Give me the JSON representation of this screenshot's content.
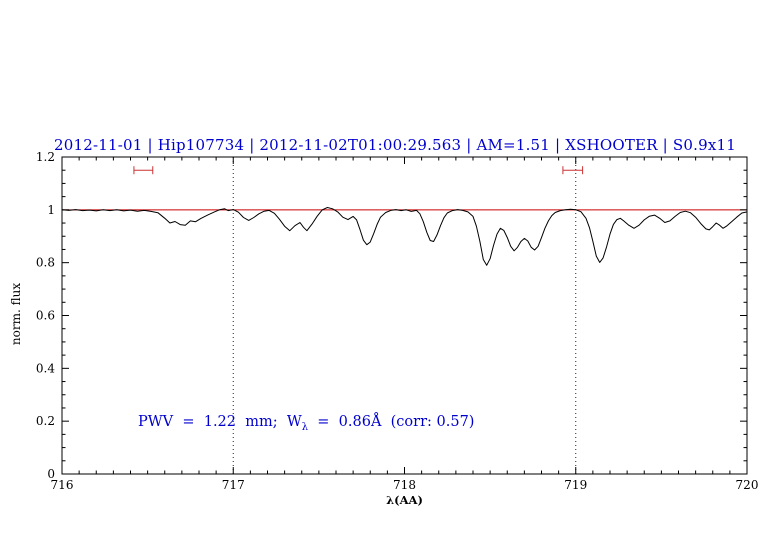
{
  "title": {
    "text": "2012-11-01 | Hip107734 | 2012-11-02T01:00:29.563 | AM=1.51 | XSHOOTER | S0.9x11",
    "color": "#0000cd"
  },
  "annotation": {
    "part1": "PWV  =  1.22  mm;  W",
    "sub": "λ",
    "part2": "  =  0.86Å  (corr: 0.57)",
    "color": "#0000cd"
  },
  "chart_data": {
    "type": "line",
    "title": "2012-11-01 | Hip107734 | 2012-11-02T01:00:29.563 | AM=1.51 | XSHOOTER | S0.9x11",
    "xlabel": "λ(AA)",
    "ylabel": "norm. flux",
    "xlim": [
      716,
      720
    ],
    "ylim": [
      0,
      1.2
    ],
    "x_ticks": [
      716,
      717,
      718,
      719,
      720
    ],
    "x_tick_labels": [
      "716",
      "717",
      "718",
      "719",
      "720"
    ],
    "y_ticks": [
      0,
      0.2,
      0.4,
      0.6,
      0.8,
      1,
      1.2
    ],
    "y_tick_labels": [
      "0",
      "0.2",
      "0.4",
      "0.6",
      "0.8",
      "1",
      "1.2"
    ],
    "grid": "off",
    "legend": "none",
    "dotted_vlines": [
      717,
      719
    ],
    "reference_hline": {
      "y": 1.0,
      "color": "#cc0000"
    },
    "range_markers": [
      {
        "x_min": 716.42,
        "x_max": 716.53,
        "y": 1.15,
        "color": "#cc3333"
      },
      {
        "x_min": 718.925,
        "x_max": 719.04,
        "y": 1.15,
        "color": "#cc3333"
      }
    ],
    "series": [
      {
        "name": "normalized telluric spectrum",
        "color": "#000000",
        "points": [
          [
            716.0,
            1.0
          ],
          [
            716.04,
            0.998
          ],
          [
            716.08,
            1.001
          ],
          [
            716.12,
            0.997
          ],
          [
            716.16,
            0.999
          ],
          [
            716.2,
            0.996
          ],
          [
            716.24,
            1.0
          ],
          [
            716.28,
            0.997
          ],
          [
            716.32,
            1.0
          ],
          [
            716.36,
            0.996
          ],
          [
            716.4,
            0.999
          ],
          [
            716.44,
            0.995
          ],
          [
            716.48,
            0.998
          ],
          [
            716.52,
            0.994
          ],
          [
            716.56,
            0.989
          ],
          [
            716.6,
            0.968
          ],
          [
            716.63,
            0.95
          ],
          [
            716.66,
            0.956
          ],
          [
            716.69,
            0.944
          ],
          [
            716.72,
            0.942
          ],
          [
            716.75,
            0.958
          ],
          [
            716.78,
            0.955
          ],
          [
            716.81,
            0.967
          ],
          [
            716.85,
            0.98
          ],
          [
            716.89,
            0.992
          ],
          [
            716.92,
            1.0
          ],
          [
            716.95,
            1.004
          ],
          [
            716.97,
            0.997
          ],
          [
            717.0,
            1.001
          ],
          [
            717.03,
            0.991
          ],
          [
            717.06,
            0.971
          ],
          [
            717.09,
            0.96
          ],
          [
            717.12,
            0.971
          ],
          [
            717.15,
            0.985
          ],
          [
            717.18,
            0.995
          ],
          [
            717.21,
            0.998
          ],
          [
            717.24,
            0.987
          ],
          [
            717.27,
            0.964
          ],
          [
            717.3,
            0.938
          ],
          [
            717.33,
            0.921
          ],
          [
            717.36,
            0.94
          ],
          [
            717.39,
            0.952
          ],
          [
            717.41,
            0.934
          ],
          [
            717.43,
            0.921
          ],
          [
            717.46,
            0.946
          ],
          [
            717.49,
            0.976
          ],
          [
            717.52,
            1.0
          ],
          [
            717.55,
            1.009
          ],
          [
            717.58,
            1.004
          ],
          [
            717.61,
            0.992
          ],
          [
            717.64,
            0.972
          ],
          [
            717.67,
            0.963
          ],
          [
            717.7,
            0.975
          ],
          [
            717.72,
            0.962
          ],
          [
            717.74,
            0.925
          ],
          [
            717.76,
            0.885
          ],
          [
            717.78,
            0.868
          ],
          [
            717.8,
            0.878
          ],
          [
            717.82,
            0.91
          ],
          [
            717.84,
            0.945
          ],
          [
            717.86,
            0.972
          ],
          [
            717.89,
            0.99
          ],
          [
            717.92,
            0.998
          ],
          [
            717.95,
            1.001
          ],
          [
            717.98,
            0.997
          ],
          [
            718.01,
            1.0
          ],
          [
            718.04,
            0.994
          ],
          [
            718.07,
            0.998
          ],
          [
            718.09,
            0.985
          ],
          [
            718.11,
            0.955
          ],
          [
            718.13,
            0.915
          ],
          [
            718.15,
            0.884
          ],
          [
            718.17,
            0.88
          ],
          [
            718.19,
            0.905
          ],
          [
            718.21,
            0.94
          ],
          [
            718.23,
            0.97
          ],
          [
            718.25,
            0.988
          ],
          [
            718.28,
            0.997
          ],
          [
            718.31,
            1.001
          ],
          [
            718.34,
            0.998
          ],
          [
            718.37,
            0.992
          ],
          [
            718.4,
            0.975
          ],
          [
            718.42,
            0.938
          ],
          [
            718.44,
            0.88
          ],
          [
            718.46,
            0.812
          ],
          [
            718.48,
            0.79
          ],
          [
            718.5,
            0.815
          ],
          [
            718.52,
            0.865
          ],
          [
            718.54,
            0.908
          ],
          [
            718.56,
            0.93
          ],
          [
            718.58,
            0.922
          ],
          [
            718.6,
            0.895
          ],
          [
            718.62,
            0.862
          ],
          [
            718.64,
            0.845
          ],
          [
            718.66,
            0.858
          ],
          [
            718.68,
            0.88
          ],
          [
            718.7,
            0.892
          ],
          [
            718.72,
            0.882
          ],
          [
            718.74,
            0.858
          ],
          [
            718.76,
            0.848
          ],
          [
            718.78,
            0.862
          ],
          [
            718.8,
            0.895
          ],
          [
            718.82,
            0.93
          ],
          [
            718.84,
            0.958
          ],
          [
            718.86,
            0.978
          ],
          [
            718.88,
            0.99
          ],
          [
            718.91,
            0.997
          ],
          [
            718.94,
            1.0
          ],
          [
            718.97,
            1.002
          ],
          [
            719.0,
            1.0
          ],
          [
            719.03,
            0.993
          ],
          [
            719.06,
            0.968
          ],
          [
            719.08,
            0.932
          ],
          [
            719.1,
            0.88
          ],
          [
            719.12,
            0.825
          ],
          [
            719.14,
            0.801
          ],
          [
            719.16,
            0.818
          ],
          [
            719.18,
            0.86
          ],
          [
            719.2,
            0.908
          ],
          [
            719.22,
            0.945
          ],
          [
            719.24,
            0.963
          ],
          [
            719.26,
            0.968
          ],
          [
            719.28,
            0.958
          ],
          [
            719.31,
            0.942
          ],
          [
            719.34,
            0.93
          ],
          [
            719.37,
            0.942
          ],
          [
            719.4,
            0.962
          ],
          [
            719.43,
            0.976
          ],
          [
            719.46,
            0.98
          ],
          [
            719.49,
            0.968
          ],
          [
            719.52,
            0.952
          ],
          [
            719.55,
            0.958
          ],
          [
            719.58,
            0.975
          ],
          [
            719.61,
            0.99
          ],
          [
            719.64,
            0.995
          ],
          [
            719.67,
            0.989
          ],
          [
            719.7,
            0.972
          ],
          [
            719.73,
            0.948
          ],
          [
            719.76,
            0.928
          ],
          [
            719.78,
            0.924
          ],
          [
            719.8,
            0.936
          ],
          [
            719.82,
            0.95
          ],
          [
            719.84,
            0.942
          ],
          [
            719.86,
            0.93
          ],
          [
            719.88,
            0.938
          ],
          [
            719.91,
            0.955
          ],
          [
            719.94,
            0.972
          ],
          [
            719.97,
            0.988
          ],
          [
            720.0,
            0.992
          ]
        ]
      }
    ]
  }
}
